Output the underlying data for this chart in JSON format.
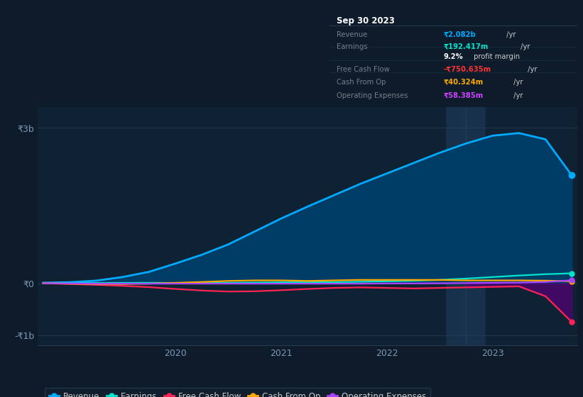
{
  "bg_color": "#0d1b2a",
  "plot_bg": "#0f2233",
  "grid_color": "#253d52",
  "x_years": [
    2018.75,
    2019.0,
    2019.25,
    2019.5,
    2019.75,
    2020.0,
    2020.25,
    2020.5,
    2020.75,
    2021.0,
    2021.25,
    2021.5,
    2021.75,
    2022.0,
    2022.25,
    2022.5,
    2022.75,
    2023.0,
    2023.25,
    2023.5,
    2023.75
  ],
  "revenue": [
    0.01,
    0.02,
    0.05,
    0.12,
    0.22,
    0.38,
    0.55,
    0.75,
    1.0,
    1.25,
    1.48,
    1.7,
    1.92,
    2.12,
    2.32,
    2.52,
    2.7,
    2.85,
    2.9,
    2.78,
    2.082
  ],
  "earnings": [
    0.003,
    0.004,
    0.005,
    0.007,
    0.009,
    0.005,
    0.004,
    0.008,
    0.012,
    0.018,
    0.018,
    0.022,
    0.028,
    0.038,
    0.048,
    0.065,
    0.09,
    0.12,
    0.15,
    0.175,
    0.192
  ],
  "free_cash_flow": [
    0.0,
    -0.015,
    -0.03,
    -0.05,
    -0.075,
    -0.11,
    -0.14,
    -0.16,
    -0.155,
    -0.135,
    -0.11,
    -0.09,
    -0.08,
    -0.09,
    -0.1,
    -0.09,
    -0.08,
    -0.07,
    -0.06,
    -0.25,
    -0.75
  ],
  "cash_from_op": [
    0.0,
    -0.008,
    -0.015,
    -0.015,
    -0.008,
    0.008,
    0.025,
    0.045,
    0.055,
    0.055,
    0.045,
    0.055,
    0.065,
    0.065,
    0.065,
    0.065,
    0.055,
    0.055,
    0.055,
    0.05,
    0.04
  ],
  "op_expenses": [
    0.0,
    -0.003,
    -0.008,
    -0.008,
    -0.008,
    -0.008,
    -0.008,
    -0.008,
    -0.008,
    -0.008,
    -0.008,
    -0.008,
    -0.008,
    -0.004,
    -0.004,
    0.0,
    0.004,
    0.008,
    0.012,
    0.025,
    0.058
  ],
  "highlight_x": 2022.75,
  "ylim": [
    -1.2,
    3.4
  ],
  "yticks": [
    -1.0,
    0.0,
    3.0
  ],
  "ytick_labels": [
    "-₹1b",
    "₹0",
    "₹3b"
  ],
  "xticks": [
    2020.0,
    2021.0,
    2022.0,
    2023.0
  ],
  "xtick_labels": [
    "2020",
    "2021",
    "2022",
    "2023"
  ],
  "revenue_color": "#00aaff",
  "revenue_fill_color": "#003d66",
  "earnings_color": "#00e5cc",
  "fcf_color": "#ff2255",
  "cash_op_color": "#ffaa00",
  "op_exp_color": "#aa44ff",
  "fcf_fill_color": "#550077",
  "legend_items": [
    {
      "label": "Revenue",
      "color": "#00aaff"
    },
    {
      "label": "Earnings",
      "color": "#00e5cc"
    },
    {
      "label": "Free Cash Flow",
      "color": "#ff2255"
    },
    {
      "label": "Cash From Op",
      "color": "#ffaa00"
    },
    {
      "label": "Operating Expenses",
      "color": "#aa44ff"
    }
  ],
  "infobox": {
    "date": "Sep 30 2023",
    "rows": [
      {
        "label": "Revenue",
        "value": "₹2.082b",
        "suffix": " /yr",
        "vcolor": "#00aaff",
        "divider": true
      },
      {
        "label": "Earnings",
        "value": "₹192.417m",
        "suffix": " /yr",
        "vcolor": "#00e5cc",
        "divider": false
      },
      {
        "label": "",
        "value": "9.2%",
        "suffix": " profit margin",
        "vcolor": "#ffffff",
        "divider": true
      },
      {
        "label": "Free Cash Flow",
        "value": "-₹750.635m",
        "suffix": " /yr",
        "vcolor": "#ff3333",
        "divider": true
      },
      {
        "label": "Cash From Op",
        "value": "₹40.324m",
        "suffix": " /yr",
        "vcolor": "#ffaa00",
        "divider": true
      },
      {
        "label": "Operating Expenses",
        "value": "₹58.385m",
        "suffix": " /yr",
        "vcolor": "#cc44ff",
        "divider": false
      }
    ]
  }
}
